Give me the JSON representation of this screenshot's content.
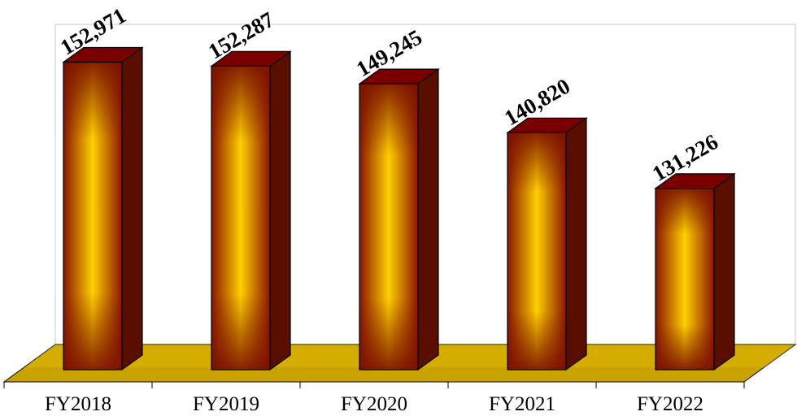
{
  "chart_data": {
    "type": "bar",
    "style": "3d-cylinder-bars",
    "categories": [
      "FY2018",
      "FY2019",
      "FY2020",
      "FY2021",
      "FY2022"
    ],
    "values": [
      152971,
      152287,
      149245,
      140820,
      131226
    ],
    "data_labels": [
      "152,971",
      "152,287",
      "149,245",
      "140,820",
      "131,226"
    ],
    "title": "",
    "xlabel": "",
    "ylabel": "",
    "ylim": [
      100000,
      155000
    ],
    "grid": false,
    "legend": "none",
    "colors": {
      "bar_center": "#ffd000",
      "bar_edge": "#8a1500",
      "bar_top": "#7a0000",
      "bar_side": "#5a0e00",
      "floor": "#c9a200",
      "floor_edge": "#e8c400",
      "outline": "#000000",
      "wall_line": "#c8c8c8"
    }
  }
}
